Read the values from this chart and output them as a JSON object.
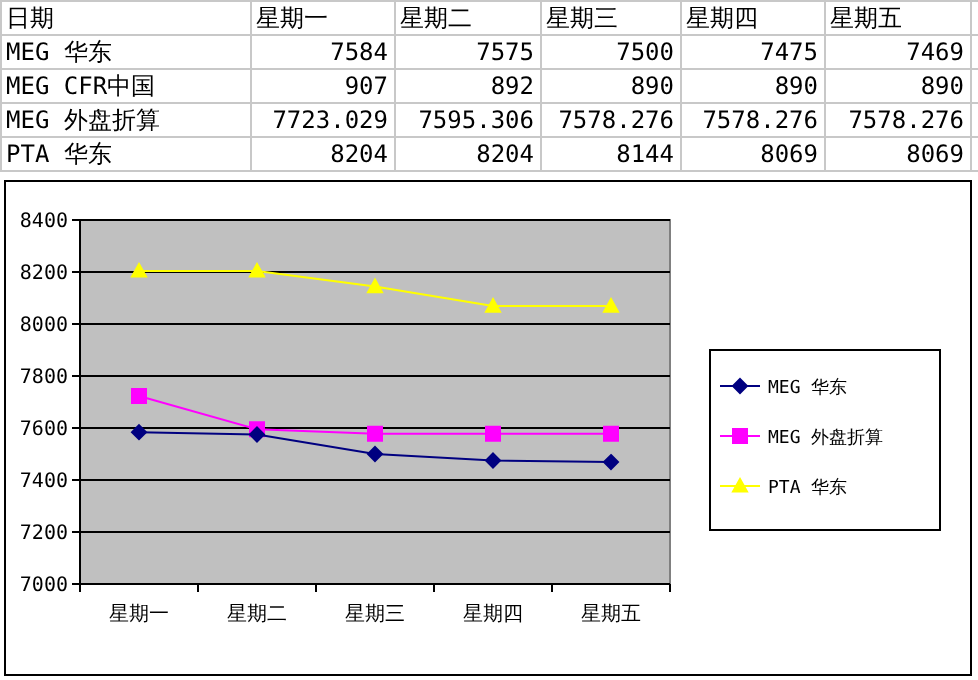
{
  "chart_data": {
    "type": "line",
    "categories": [
      "星期一",
      "星期二",
      "星期三",
      "星期四",
      "星期五"
    ],
    "series": [
      {
        "name": "MEG 华东",
        "color": "#000080",
        "marker": "diamond",
        "values": [
          7584,
          7575,
          7500,
          7475,
          7469
        ]
      },
      {
        "name": "MEG 外盘折算",
        "color": "#ff00ff",
        "marker": "square",
        "values": [
          7723.029,
          7595.306,
          7578.276,
          7578.276,
          7578.276
        ]
      },
      {
        "name": "PTA 华东",
        "color": "#ffff00",
        "marker": "triangle",
        "values": [
          8204,
          8204,
          8144,
          8069,
          8069
        ]
      }
    ],
    "ylim": [
      7000,
      8400
    ],
    "yticks": [
      7000,
      7200,
      7400,
      7600,
      7800,
      8000,
      8200,
      8400
    ],
    "grid": "y",
    "legend": "right",
    "annotations": [
      "日期",
      "7584",
      "7575",
      "7500",
      "7475",
      "7469",
      "MEG CFR中国",
      "907",
      "892",
      "890",
      "890",
      "890",
      "7723.029",
      "7595.306",
      "7578.276",
      "7578.276",
      "7578.276",
      "8204",
      "8204",
      "8144",
      "8069",
      "8069"
    ]
  }
}
